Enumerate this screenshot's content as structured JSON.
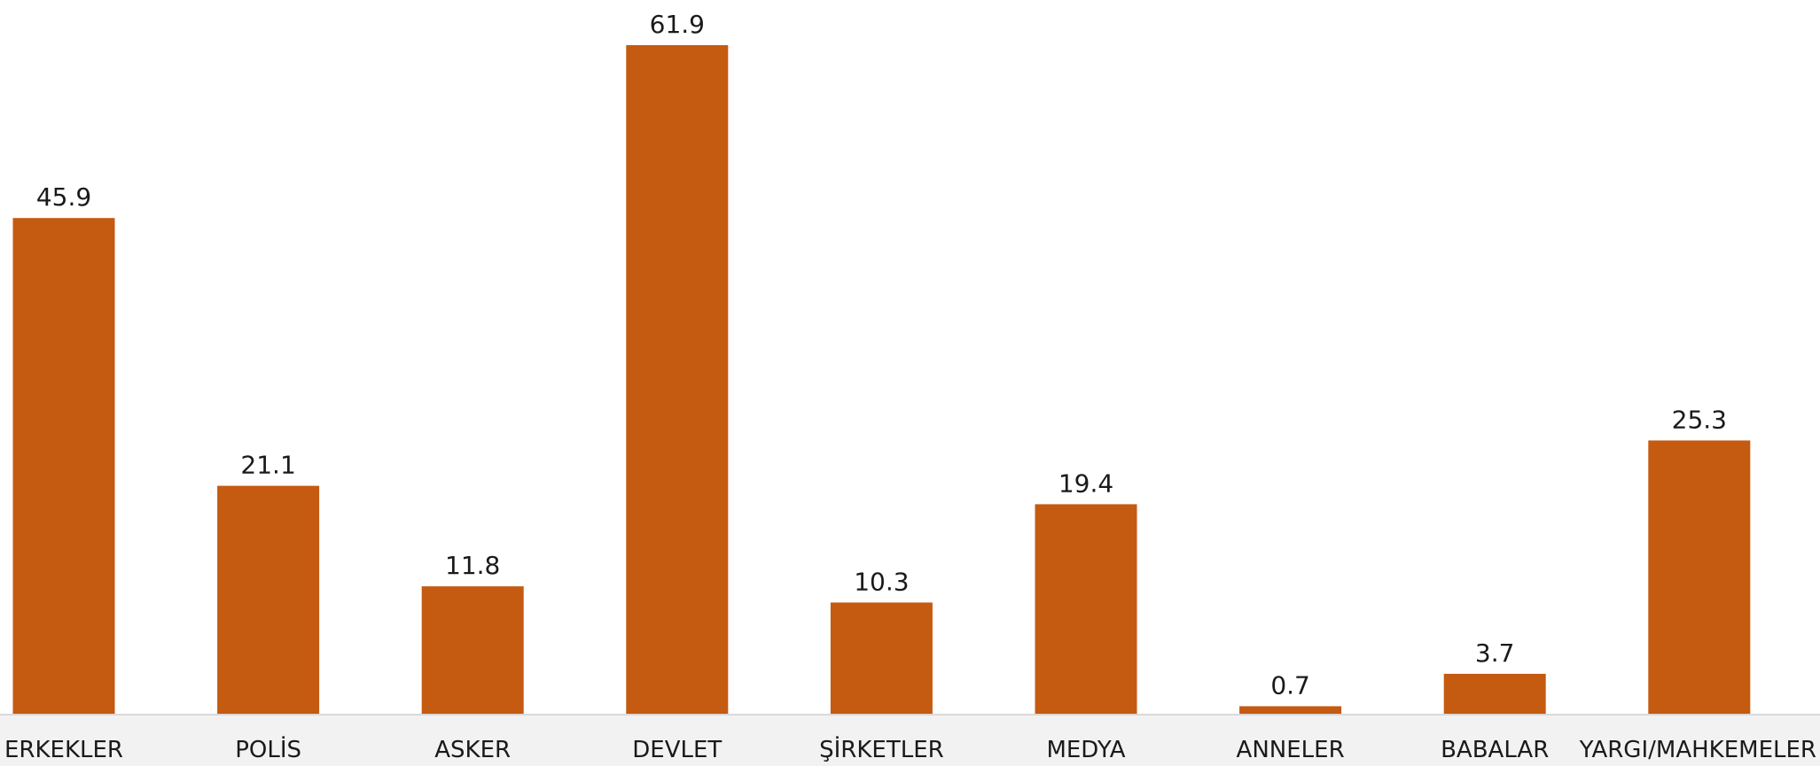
{
  "chart_data": {
    "type": "bar",
    "categories": [
      "ERKEKLER",
      "POLİS",
      "ASKER",
      "DEVLET",
      "ŞİRKETLER",
      "MEDYA",
      "ANNELER",
      "BABALAR",
      "YARGI/MAHKEMELER"
    ],
    "values": [
      45.9,
      21.1,
      11.8,
      61.9,
      10.3,
      19.4,
      0.7,
      3.7,
      25.3
    ],
    "value_labels": [
      "45.9",
      "21.1",
      "11.8",
      "61.9",
      "10.3",
      "19.4",
      "0.7",
      "3.7",
      "25.3"
    ],
    "title": "",
    "xlabel": "",
    "ylabel": "",
    "ylim": [
      0,
      61.9
    ],
    "grid": false,
    "legend": "none",
    "colors": {
      "bar": "#C55A11",
      "axis_band": "#F2F2F2",
      "axis_line": "#D9D9D9",
      "text": "#1A1A1A"
    }
  }
}
